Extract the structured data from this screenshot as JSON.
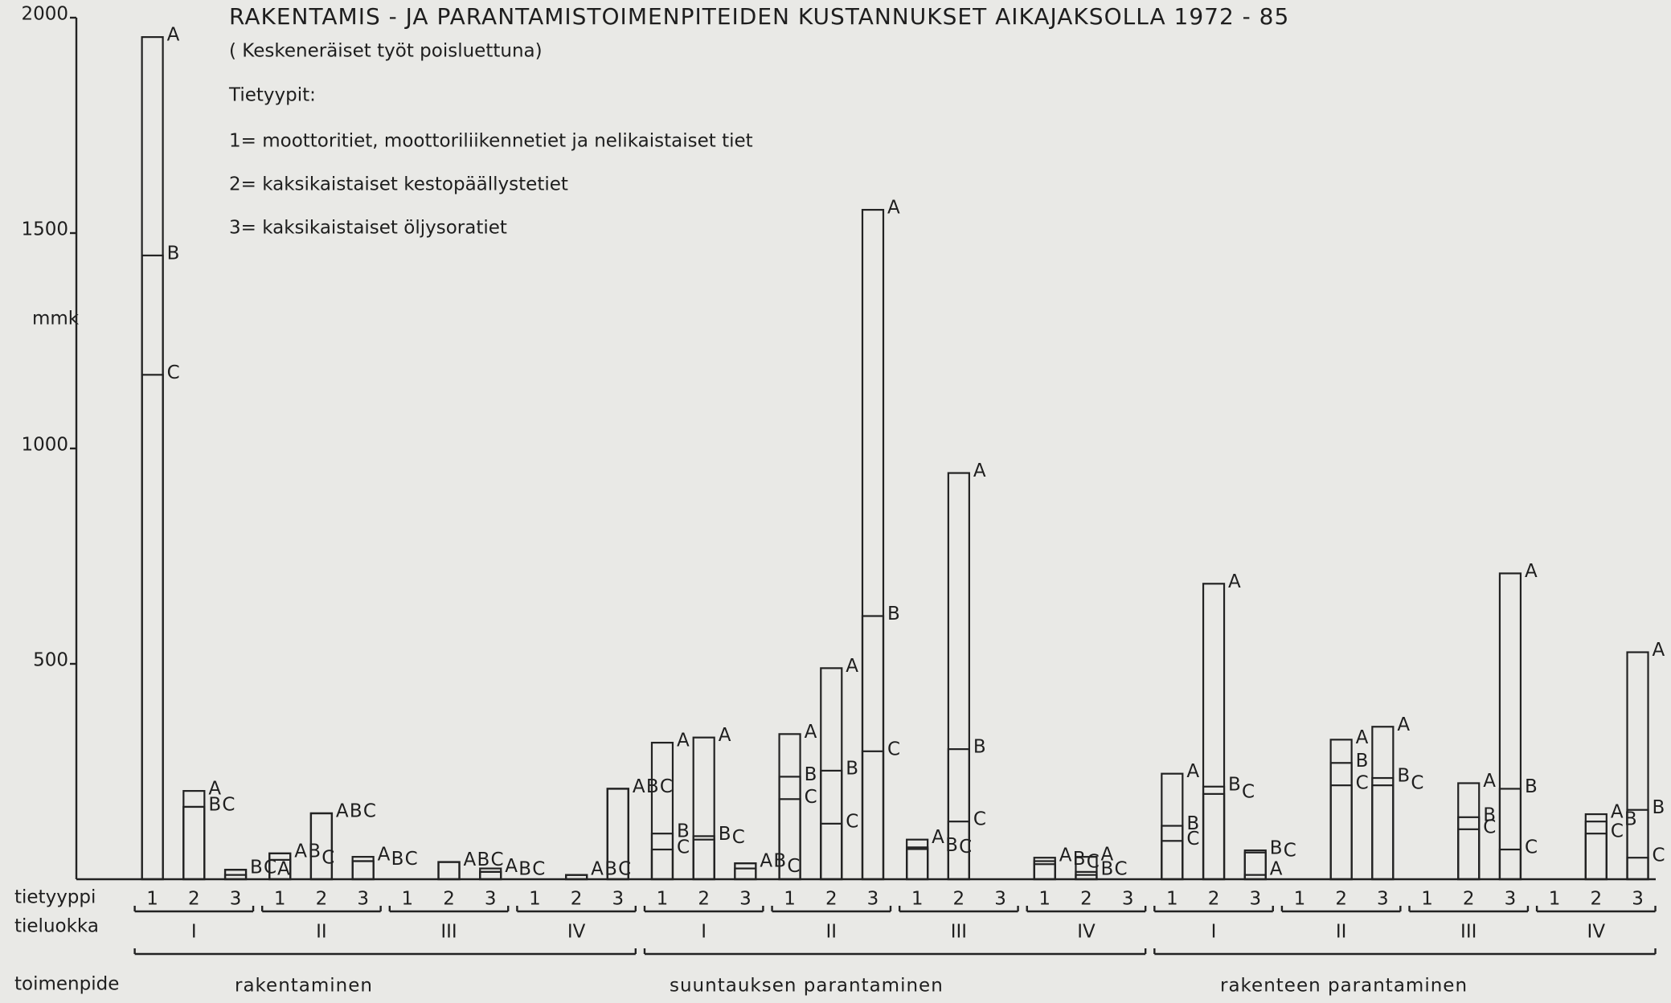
{
  "chart_data": {
    "type": "bar",
    "title": "RAKENTAMIS - JA PARANTAMISTOIMENPITEIDEN KUSTANNUKSET AIKAJAKSOLLA 1972 - 85",
    "subtitle": "( Keskeneräiset työt poisluettuna)",
    "legend_title": "Tietyypit:",
    "legend_items": [
      "1= moottoritiet, moottoriliikennetiet ja nelikaistaiset tiet",
      "2= kaksikaistaiset kestopäällystetiet",
      "3= kaksikaistaiset öljysoratiet"
    ],
    "y_label": "mmk",
    "row_labels": [
      "tietyyppi",
      "tieluokka",
      "toimenpide"
    ],
    "types": [
      "1",
      "2",
      "3"
    ],
    "classes": [
      "I",
      "II",
      "III",
      "IV"
    ],
    "measures": [
      "rakentaminen",
      "suuntauksen parantaminen",
      "rakenteen parantaminen"
    ],
    "ylim": [
      0,
      2000
    ],
    "yticks": [
      500,
      1000,
      1500,
      2000
    ],
    "series": [
      {
        "name": "A",
        "color": "#222222",
        "values": [
          1955,
          205,
          10,
          60,
          153,
          52,
          0,
          40,
          25,
          0,
          10,
          210,
          317,
          329,
          37,
          337,
          490,
          1554,
          92,
          943,
          0,
          50,
          52,
          0,
          245,
          686,
          10,
          0,
          324,
          354,
          0,
          223,
          710,
          0,
          151,
          527
        ]
      },
      {
        "name": "B",
        "color": "#222222",
        "values": [
          1448,
          168,
          22,
          60,
          153,
          42,
          0,
          40,
          17,
          0,
          10,
          210,
          106,
          100,
          37,
          238,
          252,
          611,
          74,
          302,
          0,
          42,
          17,
          0,
          124,
          215,
          67,
          0,
          270,
          235,
          0,
          144,
          210,
          0,
          134,
          161
        ]
      },
      {
        "name": "C",
        "color": "#222222",
        "values": [
          1171,
          168,
          22,
          45,
          153,
          42,
          0,
          40,
          17,
          0,
          10,
          210,
          69,
          92,
          25,
          186,
          129,
          297,
          70,
          134,
          0,
          35,
          10,
          0,
          89,
          198,
          62,
          0,
          218,
          218,
          0,
          116,
          69,
          0,
          106,
          50
        ]
      }
    ]
  }
}
